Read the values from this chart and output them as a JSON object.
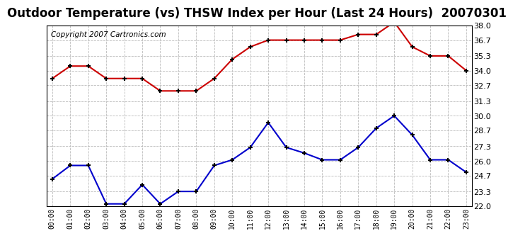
{
  "title": "Outdoor Temperature (vs) THSW Index per Hour (Last 24 Hours)  20070301",
  "copyright_text": "Copyright 2007 Cartronics.com",
  "hours": [
    "00:00",
    "01:00",
    "02:00",
    "03:00",
    "04:00",
    "05:00",
    "06:00",
    "07:00",
    "08:00",
    "09:00",
    "10:00",
    "11:00",
    "12:00",
    "13:00",
    "14:00",
    "15:00",
    "16:00",
    "17:00",
    "18:00",
    "19:00",
    "20:00",
    "21:00",
    "22:00",
    "23:00"
  ],
  "temp_red": [
    33.3,
    34.4,
    34.4,
    33.3,
    33.3,
    33.3,
    32.2,
    32.2,
    32.2,
    33.3,
    35.0,
    36.1,
    36.7,
    36.7,
    36.7,
    36.7,
    36.7,
    37.2,
    37.2,
    38.3,
    36.1,
    35.3,
    35.3,
    34.0
  ],
  "temp_blue": [
    24.4,
    25.6,
    25.6,
    22.2,
    22.2,
    23.9,
    22.2,
    23.3,
    23.3,
    25.6,
    26.1,
    27.2,
    29.4,
    27.2,
    26.7,
    26.1,
    26.1,
    27.2,
    28.9,
    30.0,
    28.3,
    26.1,
    26.1,
    25.0
  ],
  "ylim": [
    22.0,
    38.0
  ],
  "yticks": [
    22.0,
    23.3,
    24.7,
    26.0,
    27.3,
    28.7,
    30.0,
    31.3,
    32.7,
    34.0,
    35.3,
    36.7,
    38.0
  ],
  "red_color": "#cc0000",
  "blue_color": "#0000cc",
  "bg_color": "#ffffff",
  "plot_bg_color": "#ffffff",
  "grid_color": "#bbbbbb",
  "title_fontsize": 12,
  "copyright_fontsize": 7.5
}
